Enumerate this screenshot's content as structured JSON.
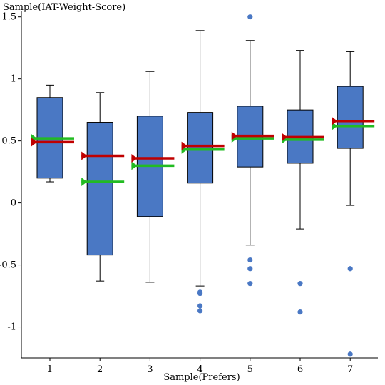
{
  "chart_data": {
    "type": "box",
    "title": "",
    "xlabel": "Sample(Prefers)",
    "ylabel": "Sample(IAT-Weight-Score)",
    "categories": [
      "1",
      "2",
      "3",
      "4",
      "5",
      "6",
      "7"
    ],
    "ylim": [
      -1.25,
      1.55
    ],
    "yticks": [
      1.5,
      1,
      0.5,
      0,
      -0.5,
      -1
    ],
    "ytick_labels": [
      "1.5",
      "1",
      "0.5",
      "0",
      "-0.5",
      "-1"
    ],
    "boxes": [
      {
        "category": "1",
        "whisker_low": 0.17,
        "q1": 0.2,
        "median": 0.49,
        "q3": 0.85,
        "whisker_high": 0.95,
        "mean": 0.49,
        "reference": 0.52,
        "outliers": []
      },
      {
        "category": "2",
        "whisker_low": -0.63,
        "q1": -0.42,
        "median": 0.38,
        "q3": 0.65,
        "whisker_high": 0.89,
        "mean": 0.38,
        "reference": 0.17,
        "outliers": []
      },
      {
        "category": "3",
        "whisker_low": -0.64,
        "q1": -0.11,
        "median": 0.36,
        "q3": 0.7,
        "whisker_high": 1.06,
        "mean": 0.36,
        "reference": 0.3,
        "outliers": []
      },
      {
        "category": "4",
        "whisker_low": -0.67,
        "q1": 0.16,
        "median": 0.46,
        "q3": 0.73,
        "whisker_high": 1.39,
        "mean": 0.46,
        "reference": 0.43,
        "outliers": [
          -0.72,
          -0.73,
          -0.83,
          -0.87
        ]
      },
      {
        "category": "5",
        "whisker_low": -0.34,
        "q1": 0.29,
        "median": 0.54,
        "q3": 0.78,
        "whisker_high": 1.31,
        "mean": 0.54,
        "reference": 0.52,
        "outliers": [
          1.5,
          -0.46,
          -0.53,
          -0.65
        ]
      },
      {
        "category": "6",
        "whisker_low": -0.21,
        "q1": 0.32,
        "median": 0.53,
        "q3": 0.75,
        "whisker_high": 1.23,
        "mean": 0.53,
        "reference": 0.51,
        "outliers": [
          -0.65,
          -0.88
        ]
      },
      {
        "category": "7",
        "whisker_low": -0.02,
        "q1": 0.44,
        "median": 0.66,
        "q3": 0.94,
        "whisker_high": 1.22,
        "mean": 0.66,
        "reference": 0.62,
        "outliers": [
          -0.53,
          -1.22
        ]
      }
    ],
    "colors": {
      "box_fill": "#4a78c4",
      "outlier": "#4a78c4",
      "mean_line": "#c00000",
      "reference_line": "#22bb22",
      "axis": "#000000"
    },
    "grid": false,
    "legend": "none"
  }
}
